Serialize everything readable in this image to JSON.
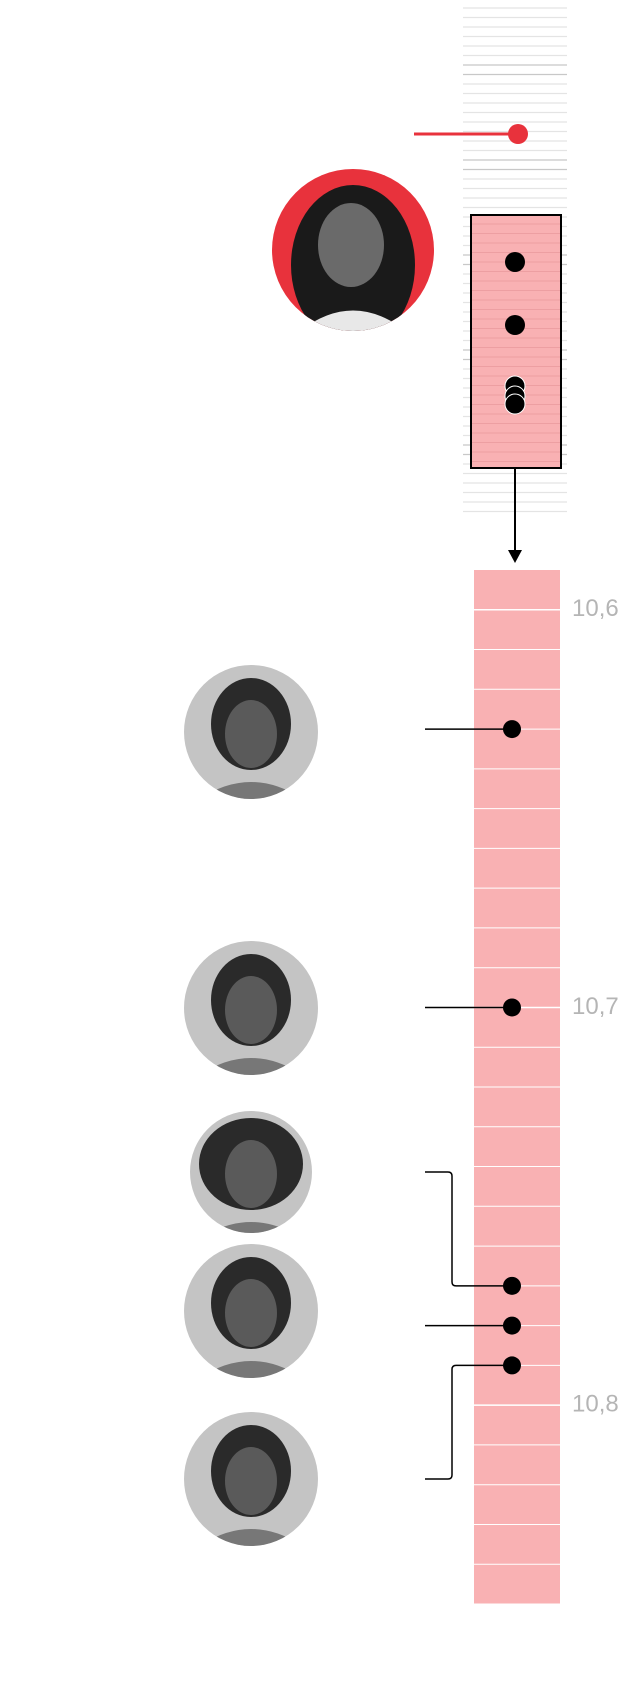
{
  "chart_data": {
    "type": "dot",
    "values": [
      10.63,
      10.7,
      10.77,
      10.78,
      10.79
    ],
    "color": "#000000",
    "band_color": "#f9b1b3",
    "highlight_color": "#e8323c",
    "ylim": [
      10.59,
      10.85
    ],
    "yticks": [
      {
        "value": 10.6,
        "label": "10,6"
      },
      {
        "value": 10.7,
        "label": "10,7"
      },
      {
        "value": 10.8,
        "label": "10,8"
      }
    ]
  }
}
